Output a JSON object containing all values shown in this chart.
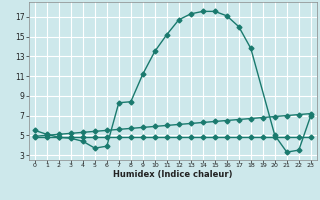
{
  "xlabel": "Humidex (Indice chaleur)",
  "bg_color": "#cde8eb",
  "grid_color": "#ffffff",
  "line_color": "#1a7a6e",
  "xlim": [
    -0.5,
    23.5
  ],
  "ylim": [
    2.5,
    18.5
  ],
  "xticks": [
    0,
    1,
    2,
    3,
    4,
    5,
    6,
    7,
    8,
    9,
    10,
    11,
    12,
    13,
    14,
    15,
    16,
    17,
    18,
    19,
    20,
    21,
    22,
    23
  ],
  "yticks": [
    3,
    5,
    7,
    9,
    11,
    13,
    15,
    17
  ],
  "curve1_x": [
    0,
    1,
    2,
    3,
    4,
    5,
    6,
    7,
    8,
    9,
    10,
    11,
    12,
    13,
    14,
    15,
    16,
    17,
    18,
    20,
    21,
    22,
    23
  ],
  "curve1_y": [
    5.5,
    5.1,
    4.8,
    4.7,
    4.4,
    3.7,
    3.9,
    8.3,
    8.4,
    11.2,
    13.5,
    15.2,
    16.7,
    17.3,
    17.55,
    17.55,
    17.1,
    16.0,
    13.8,
    5.0,
    3.3,
    3.5,
    7.0
  ],
  "curve2_x": [
    0,
    1,
    2,
    3,
    4,
    5,
    6,
    7,
    8,
    9,
    10,
    11,
    12,
    13,
    14,
    15,
    16,
    17,
    18,
    19,
    20,
    21,
    22,
    23
  ],
  "curve2_y": [
    4.8,
    4.8,
    4.8,
    4.8,
    4.8,
    4.8,
    4.8,
    4.8,
    4.8,
    4.8,
    4.8,
    4.8,
    4.8,
    4.8,
    4.8,
    4.8,
    4.8,
    4.8,
    4.8,
    4.8,
    4.8,
    4.8,
    4.8,
    4.8
  ],
  "curve3_x": [
    0,
    1,
    2,
    3,
    4,
    5,
    6,
    7,
    8,
    9,
    10,
    11,
    12,
    13,
    14,
    15,
    16,
    17,
    18,
    19,
    20,
    21,
    22,
    23
  ],
  "curve3_y": [
    4.9,
    5.0,
    5.1,
    5.2,
    5.3,
    5.4,
    5.5,
    5.6,
    5.7,
    5.8,
    5.9,
    6.0,
    6.1,
    6.2,
    6.3,
    6.4,
    6.5,
    6.6,
    6.7,
    6.8,
    6.9,
    7.0,
    7.1,
    7.2
  ]
}
